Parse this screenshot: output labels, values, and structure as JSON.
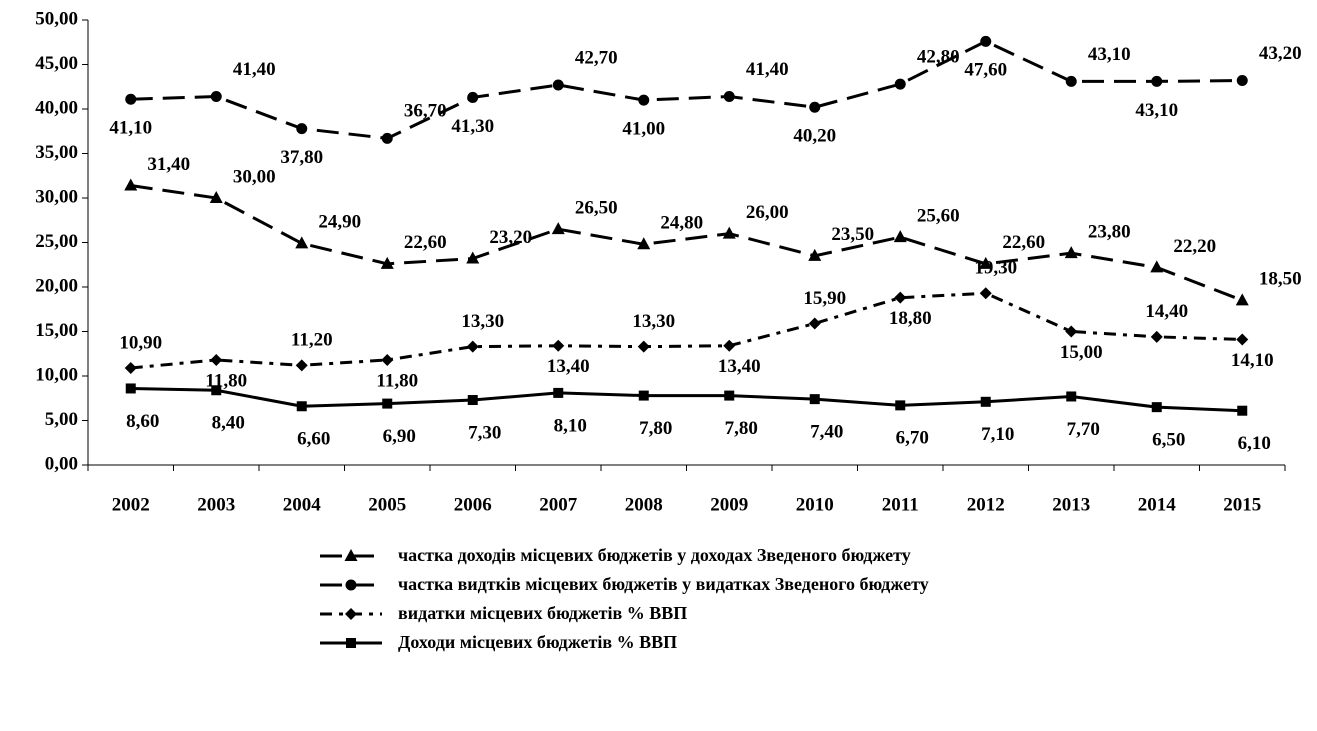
{
  "chart_data": {
    "type": "line",
    "categories": [
      "2002",
      "2003",
      "2004",
      "2005",
      "2006",
      "2007",
      "2008",
      "2009",
      "2010",
      "2011",
      "2012",
      "2013",
      "2014",
      "2015"
    ],
    "ylim": [
      0,
      50
    ],
    "yticks": [
      {
        "value": 0,
        "label": "0,00"
      },
      {
        "value": 5,
        "label": "5,00"
      },
      {
        "value": 10,
        "label": "10,00"
      },
      {
        "value": 15,
        "label": "15,00"
      },
      {
        "value": 20,
        "label": "20,00"
      },
      {
        "value": 25,
        "label": "25,00"
      },
      {
        "value": 30,
        "label": "30,00"
      },
      {
        "value": 35,
        "label": "35,00"
      },
      {
        "value": 40,
        "label": "40,00"
      },
      {
        "value": 45,
        "label": "45,00"
      },
      {
        "value": 50,
        "label": "50,00"
      }
    ],
    "grid": false,
    "series": [
      {
        "name": "частка доходів місцевих бюджетів у доходах Зведеного бюджету",
        "color": "#000000",
        "marker": "triangle",
        "line_style": "dashed",
        "values": [
          31.4,
          30.0,
          24.9,
          22.6,
          23.2,
          26.5,
          24.8,
          26.0,
          23.5,
          25.6,
          22.6,
          23.8,
          22.2,
          18.5
        ],
        "value_labels": [
          "31,40",
          "30,00",
          "24,90",
          "22,60",
          "23,20",
          "26,50",
          "24,80",
          "26,00",
          "23,50",
          "25,60",
          "22,60",
          "23,80",
          "22,20",
          "18,50"
        ]
      },
      {
        "name": "частка видтків місцевих бюджетів у видатках Зведеного бюджету",
        "color": "#000000",
        "marker": "circle",
        "line_style": "dashed",
        "values": [
          41.1,
          41.4,
          37.8,
          36.7,
          41.3,
          42.7,
          41.0,
          41.4,
          40.2,
          42.8,
          47.6,
          43.1,
          43.1,
          43.2
        ],
        "value_labels": [
          "41,10",
          "41,40",
          "37,80",
          "36,70",
          "41,30",
          "42,70",
          "41,00",
          "41,40",
          "40,20",
          "42,80",
          "47,60",
          "43,10",
          "43,10",
          "43,20"
        ]
      },
      {
        "name": "видатки місцевих бюджетів % ВВП",
        "color": "#000000",
        "marker": "diamond",
        "line_style": "dash-dot",
        "values": [
          10.9,
          11.8,
          11.2,
          11.8,
          13.3,
          13.4,
          13.3,
          13.4,
          15.9,
          18.8,
          19.3,
          15.0,
          14.4,
          14.1
        ],
        "value_labels": [
          "10,90",
          "11,80",
          "11,20",
          "11,80",
          "13,30",
          "13,40",
          "13,30",
          "13,40",
          "15,90",
          "18,80",
          "19,30",
          "15,00",
          "14,40",
          "14,10"
        ]
      },
      {
        "name": "Доходи місцевих бюджетів % ВВП",
        "color": "#000000",
        "marker": "square",
        "line_style": "solid",
        "values": [
          8.6,
          8.4,
          6.6,
          6.9,
          7.3,
          8.1,
          7.8,
          7.8,
          7.4,
          6.7,
          7.1,
          7.7,
          6.5,
          6.1
        ],
        "value_labels": [
          "8,60",
          "8,40",
          "6,60",
          "6,90",
          "7,30",
          "8,10",
          "7,80",
          "7,80",
          "7,40",
          "6,70",
          "7,10",
          "7,70",
          "6,50",
          "6,10"
        ]
      }
    ]
  }
}
